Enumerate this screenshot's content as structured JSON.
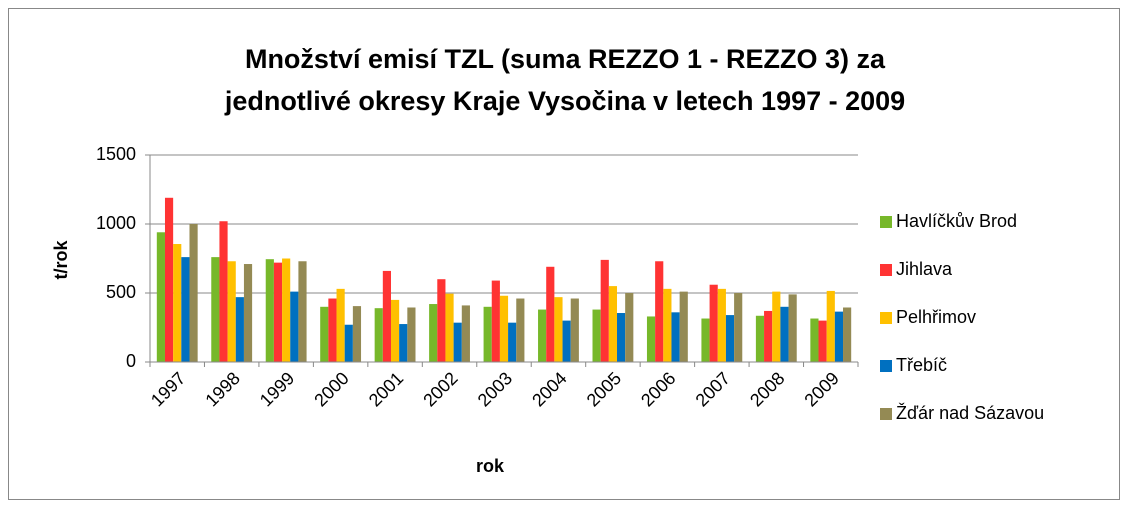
{
  "chart_data": {
    "type": "bar",
    "title": [
      "Množství emisí TZL (suma REZZO 1 - REZZO 3) za",
      "jednotlivé okresy Kraje Vysočina v letech 1997 - 2009"
    ],
    "x_label": "rok",
    "y_label": "t/rok",
    "categories": [
      "1997",
      "1998",
      "1999",
      "2000",
      "2001",
      "2002",
      "2003",
      "2004",
      "2005",
      "2006",
      "2007",
      "2008",
      "2009"
    ],
    "series": [
      {
        "name": "Havlíčkův Brod",
        "color": "#77b82a",
        "values": [
          940,
          760,
          745,
          400,
          390,
          420,
          400,
          380,
          380,
          330,
          315,
          335,
          315
        ]
      },
      {
        "name": "Jihlava",
        "color": "#ff3333",
        "values": [
          1190,
          1020,
          720,
          460,
          660,
          600,
          590,
          690,
          740,
          730,
          560,
          370,
          300
        ]
      },
      {
        "name": "Pelhřimov",
        "color": "#ffc000",
        "values": [
          855,
          730,
          750,
          530,
          450,
          495,
          480,
          470,
          550,
          530,
          530,
          510,
          515
        ]
      },
      {
        "name": "Třebíč",
        "color": "#0070c0",
        "values": [
          760,
          470,
          510,
          270,
          275,
          285,
          285,
          300,
          355,
          360,
          340,
          400,
          365
        ]
      },
      {
        "name": "Žďár nad Sázavou",
        "color": "#948a54",
        "values": [
          1000,
          710,
          730,
          405,
          395,
          410,
          460,
          460,
          500,
          510,
          500,
          490,
          395
        ]
      }
    ],
    "ylim": [
      0,
      1500
    ],
    "yticks": [
      0,
      500,
      1000,
      1500
    ],
    "grid": true,
    "legend": "right"
  }
}
